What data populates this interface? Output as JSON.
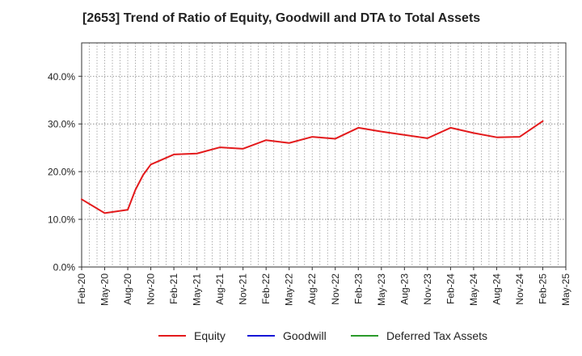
{
  "chart_data": {
    "type": "line",
    "title": "[2653]  Trend of Ratio of Equity, Goodwill and DTA to Total Assets",
    "xlabel": "",
    "ylabel": "",
    "ylim": [
      0,
      47
    ],
    "yticks": [
      0,
      10,
      20,
      30,
      40
    ],
    "ytick_labels": [
      "0.0%",
      "10.0%",
      "20.0%",
      "30.0%",
      "40.0%"
    ],
    "x_tick_labels": [
      "Feb-20",
      "May-20",
      "Aug-20",
      "Nov-20",
      "Feb-21",
      "May-21",
      "Aug-21",
      "Nov-21",
      "Feb-22",
      "May-22",
      "Aug-22",
      "Nov-22",
      "Feb-23",
      "May-23",
      "Aug-23",
      "Nov-23",
      "Feb-24",
      "May-24",
      "Aug-24",
      "Nov-24",
      "Feb-25",
      "May-25"
    ],
    "x_range_months": [
      0,
      63
    ],
    "grid": true,
    "legend_position": "bottom",
    "series": [
      {
        "name": "Equity",
        "color": "#e31a1c",
        "x_months": [
          0,
          3,
          6,
          7,
          8,
          9,
          12,
          15,
          18,
          21,
          24,
          27,
          30,
          33,
          36,
          39,
          42,
          45,
          48,
          51,
          54,
          57,
          60
        ],
        "values": [
          14.2,
          11.3,
          12.0,
          16.2,
          19.3,
          21.5,
          23.6,
          23.8,
          25.1,
          24.8,
          26.6,
          26.0,
          27.3,
          26.9,
          29.2,
          28.4,
          27.7,
          27.0,
          29.2,
          28.1,
          27.2,
          27.3,
          30.6
        ]
      },
      {
        "name": "Goodwill",
        "color": "#1515d6",
        "x_months": [],
        "values": []
      },
      {
        "name": "Deferred Tax Assets",
        "color": "#2a9a2a",
        "x_months": [],
        "values": []
      }
    ]
  }
}
